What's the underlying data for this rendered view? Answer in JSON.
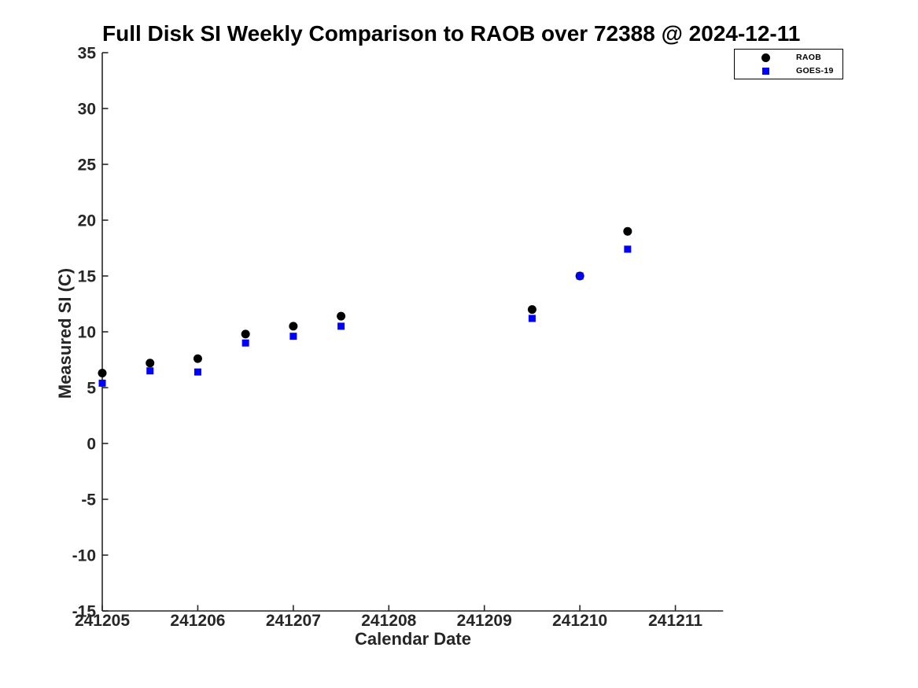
{
  "chart_data": {
    "type": "scatter",
    "title": "Full Disk SI Weekly Comparison to RAOB over 72388 @ 2024-12-11",
    "xlabel": "Calendar Date",
    "ylabel": "Measured SI (C)",
    "xlim": [
      241205,
      241211.5
    ],
    "ylim": [
      -15,
      35
    ],
    "xticks": [
      241205,
      241206,
      241207,
      241208,
      241209,
      241210,
      241211
    ],
    "yticks": [
      35,
      30,
      25,
      20,
      15,
      10,
      5,
      0,
      -5,
      -10,
      -15
    ],
    "grid": false,
    "legend_position": "top-right",
    "x": [
      241205,
      241205.5,
      241206,
      241206.5,
      241207,
      241207.5,
      241209.5,
      241210,
      241210.5
    ],
    "series": [
      {
        "name": "RAOB",
        "marker": "circle",
        "color": "#000000",
        "values": [
          6.3,
          7.2,
          7.6,
          9.8,
          10.5,
          11.4,
          12.0,
          15.0,
          19.0
        ]
      },
      {
        "name": "GOES-19",
        "marker": "square",
        "color": "#0000ff",
        "values": [
          5.4,
          6.5,
          6.4,
          9.0,
          9.6,
          10.5,
          11.2,
          15.0,
          17.4
        ]
      }
    ]
  }
}
